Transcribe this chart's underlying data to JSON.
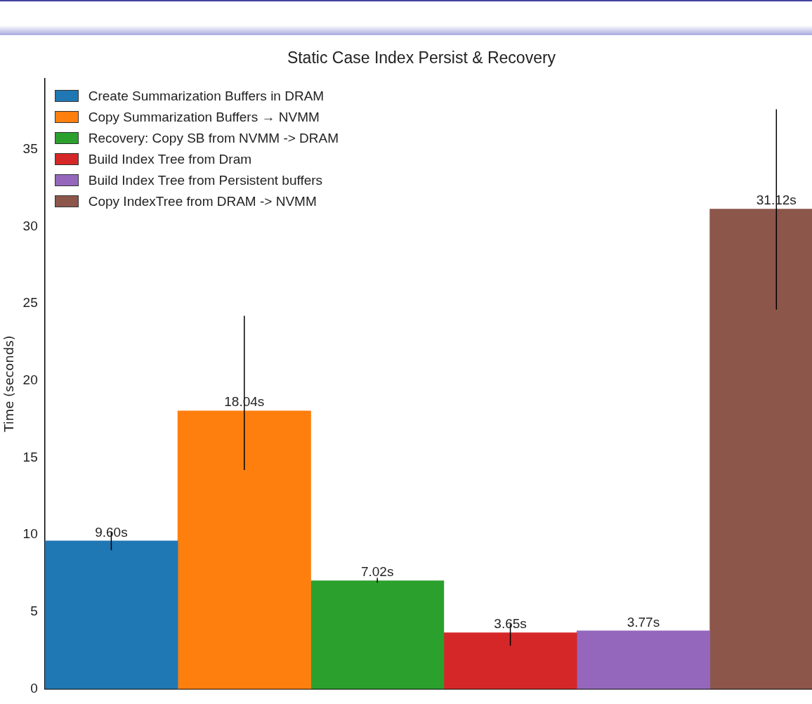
{
  "chart_data": {
    "type": "bar",
    "title": "Static Case Index Persist & Recovery",
    "ylabel": "Time (seconds)",
    "categories": [
      null,
      null,
      null,
      null,
      null,
      null
    ],
    "series": [
      {
        "name": "Create Summarization Buffers in DRAM",
        "color": "#1f77b4",
        "values": [
          9.6,
          null,
          null,
          null,
          null,
          null
        ],
        "errors": [
          [
            9.0,
            10.2
          ],
          null,
          null,
          null,
          null,
          null
        ],
        "value_labels": [
          "9.60s",
          null,
          null,
          null,
          null,
          null
        ]
      },
      {
        "name": "Copy Summarization Buffers → NVMM",
        "color": "#ff7f0e",
        "values": [
          null,
          18.04,
          null,
          null,
          null,
          null
        ],
        "errors": [
          null,
          [
            14.2,
            24.2
          ],
          null,
          null,
          null,
          null
        ],
        "value_labels": [
          null,
          "18.04s",
          null,
          null,
          null,
          null
        ]
      },
      {
        "name": "Recovery: Copy SB from NVMM -> DRAM",
        "color": "#2ca02c",
        "values": [
          null,
          null,
          7.02,
          null,
          null,
          null
        ],
        "errors": [
          null,
          null,
          [
            6.9,
            7.2
          ],
          null,
          null,
          null
        ],
        "value_labels": [
          null,
          null,
          "7.02s",
          null,
          null,
          null
        ]
      },
      {
        "name": "Build Index Tree from Dram",
        "color": "#d62728",
        "values": [
          null,
          null,
          null,
          3.65,
          null,
          null
        ],
        "errors": [
          null,
          null,
          null,
          [
            2.8,
            4.2
          ],
          null,
          null
        ],
        "value_labels": [
          null,
          null,
          null,
          "3.65s",
          null,
          null
        ]
      },
      {
        "name": "Build Index Tree from Persistent buffers",
        "color": "#9467bd",
        "values": [
          null,
          null,
          null,
          null,
          3.77,
          null
        ],
        "value_labels": [
          null,
          null,
          null,
          null,
          "3.77s",
          null
        ]
      },
      {
        "name": "Copy IndexTree from DRAM -> NVMM",
        "color": "#8c564b",
        "values": [
          null,
          null,
          null,
          null,
          null,
          31.12
        ],
        "errors": [
          null,
          null,
          null,
          null,
          null,
          [
            24.6,
            37.6
          ]
        ],
        "value_labels": [
          null,
          null,
          null,
          null,
          null,
          "31.12s"
        ]
      }
    ],
    "ylim": [
      0,
      39.6
    ],
    "yticks": [
      0,
      5,
      10,
      15,
      20,
      25,
      30,
      35
    ],
    "grid": false,
    "legend": "top left",
    "tick_labels": "y"
  }
}
